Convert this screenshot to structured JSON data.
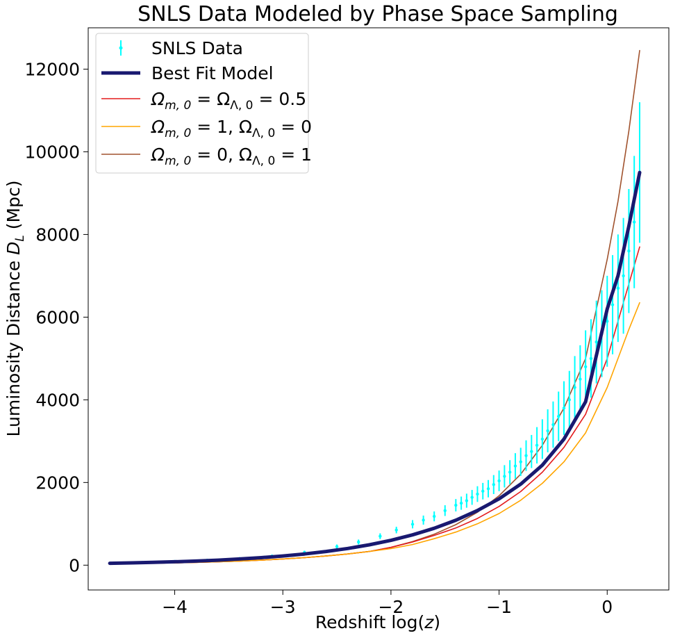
{
  "chart_data": {
    "type": "line",
    "title": "SNLS Data Modeled by Phase Space Sampling",
    "xlabel_main": "Redshift log(",
    "xlabel_var": "z",
    "xlabel_close": ")",
    "ylabel_main": "Luminosity Distance ",
    "ylabel_var": "D",
    "ylabel_sub": "L",
    "ylabel_unit": " (Mpc)",
    "xlim": [
      -4.8,
      0.57
    ],
    "ylim": [
      -600,
      13000
    ],
    "xticks": [
      -4,
      -3,
      -2,
      -1,
      0
    ],
    "xtick_labels": [
      "−4",
      "−3",
      "−2",
      "−1",
      "0"
    ],
    "yticks": [
      0,
      2000,
      4000,
      6000,
      8000,
      10000,
      12000
    ],
    "ytick_labels": [
      "0",
      "2000",
      "4000",
      "6000",
      "8000",
      "10000",
      "12000"
    ],
    "legend_position": "top-left",
    "series": [
      {
        "name": "SNLS Data",
        "kind": "errorbar",
        "color": "#00FFFF",
        "x": [
          -4.6,
          -4.3,
          -4.0,
          -3.7,
          -3.4,
          -3.1,
          -2.8,
          -2.5,
          -2.3,
          -2.1,
          -1.95,
          -1.8,
          -1.7,
          -1.6,
          -1.5,
          -1.4,
          -1.35,
          -1.3,
          -1.25,
          -1.2,
          -1.15,
          -1.1,
          -1.05,
          -1.0,
          -0.95,
          -0.9,
          -0.85,
          -0.8,
          -0.75,
          -0.7,
          -0.65,
          -0.6,
          -0.55,
          -0.5,
          -0.45,
          -0.4,
          -0.35,
          -0.3,
          -0.25,
          -0.2,
          -0.15,
          -0.1,
          -0.05,
          0.0,
          0.05,
          0.1,
          0.15,
          0.2,
          0.25,
          0.3
        ],
        "y": [
          45,
          65,
          90,
          120,
          160,
          220,
          310,
          450,
          560,
          700,
          850,
          990,
          1090,
          1180,
          1320,
          1450,
          1500,
          1560,
          1640,
          1720,
          1790,
          1850,
          1950,
          2040,
          2150,
          2250,
          2400,
          2500,
          2650,
          2750,
          2900,
          3050,
          3250,
          3400,
          3600,
          3800,
          4000,
          4300,
          4500,
          4800,
          5000,
          5400,
          5600,
          5900,
          6300,
          6700,
          7000,
          7600,
          8300,
          9500
        ],
        "err": [
          10,
          12,
          15,
          18,
          25,
          30,
          40,
          50,
          60,
          70,
          80,
          100,
          110,
          120,
          130,
          150,
          160,
          170,
          180,
          190,
          200,
          210,
          230,
          250,
          270,
          290,
          310,
          340,
          370,
          400,
          440,
          480,
          520,
          560,
          600,
          650,
          700,
          760,
          820,
          880,
          950,
          1000,
          1050,
          1100,
          1200,
          1300,
          1400,
          1500,
          1600,
          1700
        ]
      },
      {
        "name": "Best Fit Model",
        "kind": "line",
        "color": "#191970",
        "width": 5,
        "x": [
          -4.6,
          -4.4,
          -4.2,
          -4.0,
          -3.8,
          -3.6,
          -3.4,
          -3.2,
          -3.0,
          -2.8,
          -2.6,
          -2.4,
          -2.2,
          -2.0,
          -1.8,
          -1.6,
          -1.4,
          -1.2,
          -1.0,
          -0.8,
          -0.6,
          -0.4,
          -0.2,
          0.0,
          0.1,
          0.2,
          0.3
        ],
        "y": [
          45,
          55,
          67,
          82,
          100,
          122,
          149,
          182,
          222,
          271,
          331,
          404,
          493,
          601,
          733,
          893,
          1087,
          1322,
          1606,
          1960,
          2420,
          3050,
          3950,
          6200,
          7000,
          8200,
          9500
        ]
      },
      {
        "name_main": "Ω",
        "name_sub1": "m, 0",
        "name_mid": " = Ω",
        "name_sub2": "Λ, 0",
        "name_end": " = 0.5",
        "kind": "line",
        "color": "#E31A1C",
        "width": 1.6,
        "x": [
          -4.6,
          -4.4,
          -4.2,
          -4.0,
          -3.8,
          -3.6,
          -3.4,
          -3.2,
          -3.0,
          -2.8,
          -2.6,
          -2.4,
          -2.2,
          -2.0,
          -1.8,
          -1.6,
          -1.4,
          -1.2,
          -1.0,
          -0.8,
          -0.6,
          -0.4,
          -0.2,
          0.0,
          0.1,
          0.2,
          0.3
        ],
        "y": [
          30,
          37,
          45,
          55,
          67,
          82,
          100,
          122,
          149,
          182,
          222,
          271,
          331,
          430,
          560,
          720,
          900,
          1130,
          1420,
          1780,
          2250,
          2850,
          3650,
          5000,
          5900,
          6800,
          7700
        ]
      },
      {
        "name_main": "Ω",
        "name_sub1": "m, 0",
        "name_mid": " = 1, Ω",
        "name_sub2": "Λ, 0",
        "name_end": " = 0",
        "kind": "line",
        "color": "#FFA500",
        "width": 1.6,
        "x": [
          -4.6,
          -4.4,
          -4.2,
          -4.0,
          -3.8,
          -3.6,
          -3.4,
          -3.2,
          -3.0,
          -2.8,
          -2.6,
          -2.4,
          -2.2,
          -2.0,
          -1.8,
          -1.6,
          -1.4,
          -1.2,
          -1.0,
          -0.8,
          -0.6,
          -0.4,
          -0.2,
          0.0,
          0.1,
          0.2,
          0.3
        ],
        "y": [
          30,
          37,
          45,
          55,
          67,
          82,
          100,
          122,
          149,
          182,
          222,
          271,
          331,
          400,
          500,
          640,
          800,
          1000,
          1250,
          1570,
          1980,
          2500,
          3200,
          4300,
          5000,
          5700,
          6350
        ]
      },
      {
        "name_main": "Ω",
        "name_sub1": "m, 0",
        "name_mid": " = 0, Ω",
        "name_sub2": "Λ, 0",
        "name_end": " = 1",
        "kind": "line",
        "color": "#A0522D",
        "width": 1.6,
        "x": [
          -4.6,
          -4.4,
          -4.2,
          -4.0,
          -3.8,
          -3.6,
          -3.4,
          -3.2,
          -3.0,
          -2.8,
          -2.6,
          -2.4,
          -2.2,
          -2.0,
          -1.8,
          -1.6,
          -1.4,
          -1.2,
          -1.0,
          -0.8,
          -0.6,
          -0.4,
          -0.2,
          0.0,
          0.1,
          0.2,
          0.3
        ],
        "y": [
          30,
          37,
          45,
          55,
          67,
          82,
          100,
          122,
          149,
          182,
          222,
          271,
          331,
          430,
          570,
          750,
          980,
          1280,
          1680,
          2200,
          2900,
          3800,
          5000,
          7400,
          8800,
          10500,
          12450
        ]
      }
    ]
  }
}
